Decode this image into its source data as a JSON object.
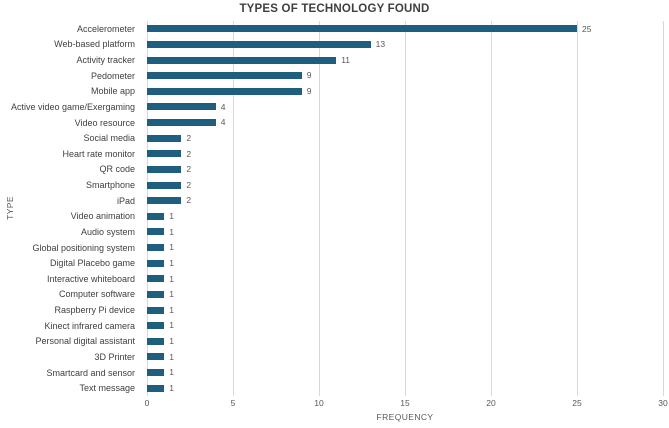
{
  "chart_data": {
    "type": "bar",
    "orientation": "horizontal",
    "title": "TYPES OF TECHNOLOGY FOUND",
    "xlabel": "FREQUENCY",
    "ylabel": "TYPE",
    "categories": [
      "Accelerometer",
      "Web-based platform",
      "Activity tracker",
      "Pedometer",
      "Mobile app",
      "Active video game/Exergaming",
      "Video resource",
      "Social media",
      "Heart rate monitor",
      "QR code",
      "Smartphone",
      "iPad",
      "Video animation",
      "Audio system",
      "Global positioning system",
      "Digital Placebo game",
      "Interactive whiteboard",
      "Computer software",
      "Raspberry Pi device",
      "Kinect infrared camera",
      "Personal digital assistant",
      "3D Printer",
      "Smartcard and sensor",
      "Text message"
    ],
    "values": [
      25,
      13,
      11,
      9,
      9,
      4,
      4,
      2,
      2,
      2,
      2,
      2,
      1,
      1,
      1,
      1,
      1,
      1,
      1,
      1,
      1,
      1,
      1,
      1
    ],
    "xlim": [
      0,
      30
    ],
    "xticks": [
      0,
      5,
      10,
      15,
      20,
      25,
      30
    ],
    "grid": "vertical",
    "data_labels": true,
    "legend": "none",
    "colors": {
      "bar": "#1F5E7E",
      "title": "#3F3F3F",
      "category_label": "#404040",
      "value_label": "#595959",
      "tick_label": "#595959",
      "axis_title": "#595959",
      "gridline": "#D9D9D9",
      "background": "#FFFFFF"
    }
  }
}
